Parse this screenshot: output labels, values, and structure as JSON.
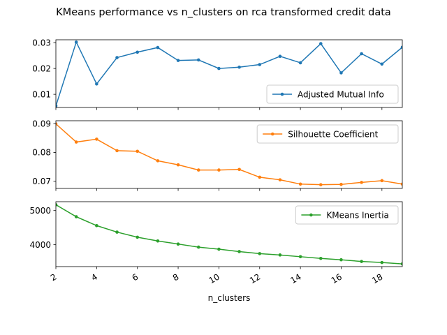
{
  "chart_data": {
    "type": "line",
    "title": "KMeans performance vs n_clusters on rca transformed credit data",
    "xlabel": "n_clusters",
    "x": [
      2,
      3,
      4,
      5,
      6,
      7,
      8,
      9,
      10,
      11,
      12,
      13,
      14,
      15,
      16,
      17,
      18,
      19
    ],
    "xlim": [
      2,
      19
    ],
    "xticks": [
      2,
      4,
      6,
      8,
      10,
      12,
      14,
      16,
      18
    ],
    "xtick_labels": [
      "2",
      "4",
      "6",
      "8",
      "10",
      "12",
      "14",
      "16",
      "18"
    ],
    "grid": false,
    "subplots": [
      {
        "legend": "Adjusted Mutual Info",
        "legend_loc": "lower-right",
        "color": "#1f77b4",
        "values": [
          0.0055,
          0.0302,
          0.014,
          0.0242,
          0.0263,
          0.0281,
          0.0231,
          0.0233,
          0.02,
          0.0205,
          0.0215,
          0.0247,
          0.0222,
          0.0296,
          0.0183,
          0.0257,
          0.0217,
          0.0282
        ],
        "ylim": [
          0.0049,
          0.0311
        ],
        "yticks": [
          0.01,
          0.02,
          0.03
        ],
        "ytick_labels": [
          "0.01",
          "0.02",
          "0.03"
        ]
      },
      {
        "legend": "Silhouette Coefficient",
        "legend_loc": "upper-right",
        "color": "#ff7f0e",
        "values": [
          0.0899,
          0.0836,
          0.0846,
          0.0806,
          0.0804,
          0.0771,
          0.0757,
          0.0739,
          0.0739,
          0.0741,
          0.0714,
          0.0705,
          0.069,
          0.0688,
          0.0689,
          0.0696,
          0.0702,
          0.069
        ],
        "ylim": [
          0.0675,
          0.091
        ],
        "yticks": [
          0.07,
          0.08,
          0.09
        ],
        "ytick_labels": [
          "0.07",
          "0.08",
          "0.09"
        ]
      },
      {
        "legend": "KMeans Inertia",
        "legend_loc": "upper-right",
        "color": "#2ca02c",
        "values": [
          5170,
          4820,
          4560,
          4370,
          4220,
          4110,
          4020,
          3930,
          3870,
          3800,
          3740,
          3700,
          3650,
          3600,
          3560,
          3510,
          3480,
          3440
        ],
        "ylim": [
          3360,
          5260
        ],
        "yticks": [
          4000,
          5000
        ],
        "ytick_labels": [
          "4000",
          "5000"
        ]
      }
    ]
  }
}
